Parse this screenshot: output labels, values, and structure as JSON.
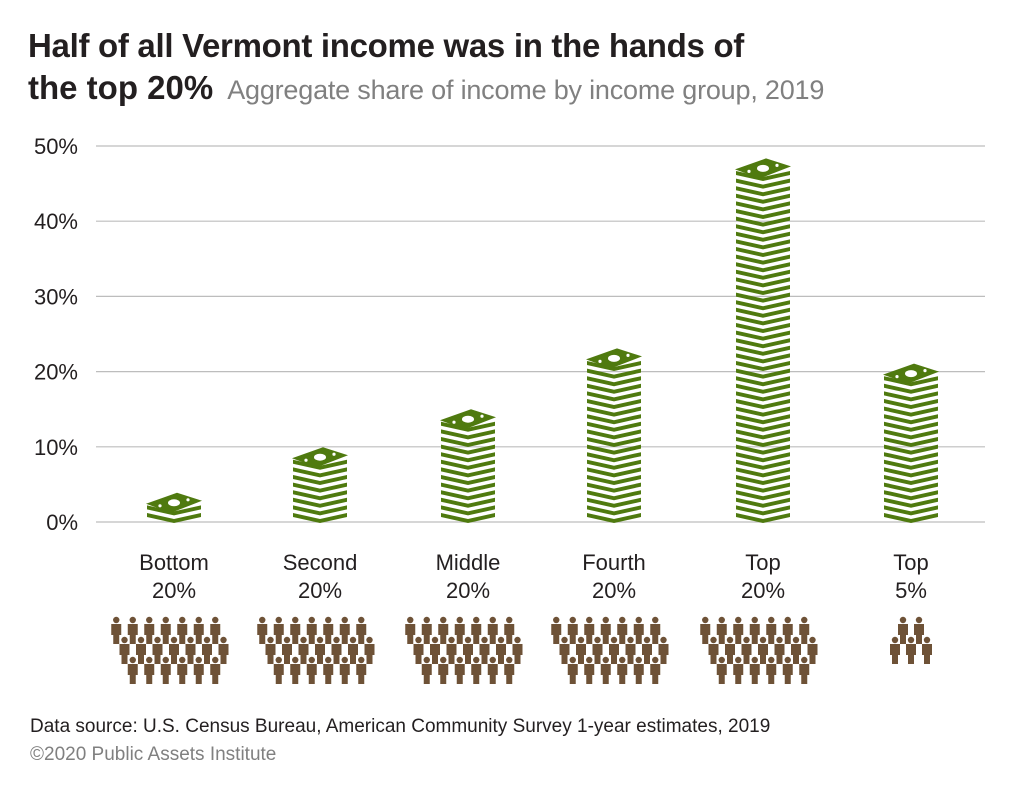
{
  "title_line1": "Half of all Vermont income was in the hands of",
  "title_line2": "the top 20%",
  "subtitle": "Aggregate share of income by income group, 2019",
  "footer_source": "Data source: U.S. Census Bureau, American Community Survey 1-year estimates, 2019",
  "footer_copyright": "©2020 Public Assets Institute",
  "colors": {
    "bill": "#4f7a0f",
    "people": "#6e5237",
    "grid": "#bdbdbd",
    "text": "#231f20"
  },
  "chart_data": {
    "type": "bar",
    "title": "Half of all Vermont income was in the hands of the top 20%",
    "subtitle": "Aggregate share of income by income group, 2019",
    "xlabel": "",
    "ylabel": "",
    "ylim": [
      0,
      50
    ],
    "yticks": [
      "0%",
      "10%",
      "20%",
      "30%",
      "40%",
      "50%"
    ],
    "grid": true,
    "categories": [
      {
        "line1": "Bottom",
        "line2": "20%",
        "people": 20
      },
      {
        "line1": "Second",
        "line2": "20%",
        "people": 20
      },
      {
        "line1": "Middle",
        "line2": "20%",
        "people": 20
      },
      {
        "line1": "Fourth",
        "line2": "20%",
        "people": 20
      },
      {
        "line1": "Top",
        "line2": "20%",
        "people": 20
      },
      {
        "line1": "Top",
        "line2": "5%",
        "people": 5
      }
    ],
    "values": [
      3.0,
      8.5,
      14.3,
      22.0,
      47.5,
      19.5
    ],
    "mark": "stacked money bills"
  }
}
